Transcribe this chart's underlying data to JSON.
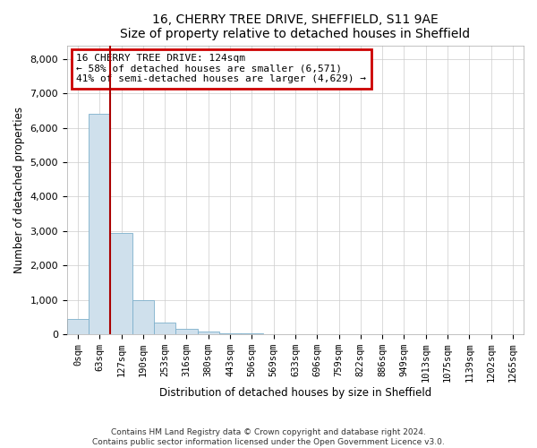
{
  "title": "16, CHERRY TREE DRIVE, SHEFFIELD, S11 9AE",
  "subtitle": "Size of property relative to detached houses in Sheffield",
  "xlabel": "Distribution of detached houses by size in Sheffield",
  "ylabel": "Number of detached properties",
  "annotation_line1": "16 CHERRY TREE DRIVE: 124sqm",
  "annotation_line2": "← 58% of detached houses are smaller (6,571)",
  "annotation_line3": "41% of semi-detached houses are larger (4,629) →",
  "property_size_sqm": 124,
  "footer_line1": "Contains HM Land Registry data © Crown copyright and database right 2024.",
  "footer_line2": "Contains public sector information licensed under the Open Government Licence v3.0.",
  "bar_color": "#cfe0ec",
  "bar_edge_color": "#7db0cc",
  "annotation_box_color": "#cc0000",
  "vline_color": "#aa0000",
  "categories": [
    "0sqm",
    "63sqm",
    "127sqm",
    "190sqm",
    "253sqm",
    "316sqm",
    "380sqm",
    "443sqm",
    "506sqm",
    "569sqm",
    "633sqm",
    "696sqm",
    "759sqm",
    "822sqm",
    "886sqm",
    "949sqm",
    "1013sqm",
    "1075sqm",
    "1139sqm",
    "1202sqm",
    "1265sqm"
  ],
  "values": [
    430,
    6400,
    2950,
    980,
    350,
    150,
    80,
    35,
    15,
    8,
    4,
    3,
    2,
    1,
    1,
    1,
    1,
    1,
    0,
    0,
    0
  ],
  "ylim": [
    0,
    8400
  ],
  "yticks": [
    0,
    1000,
    2000,
    3000,
    4000,
    5000,
    6000,
    7000,
    8000
  ],
  "vline_x": 2.0,
  "figsize": [
    6.0,
    5.0
  ],
  "dpi": 100
}
